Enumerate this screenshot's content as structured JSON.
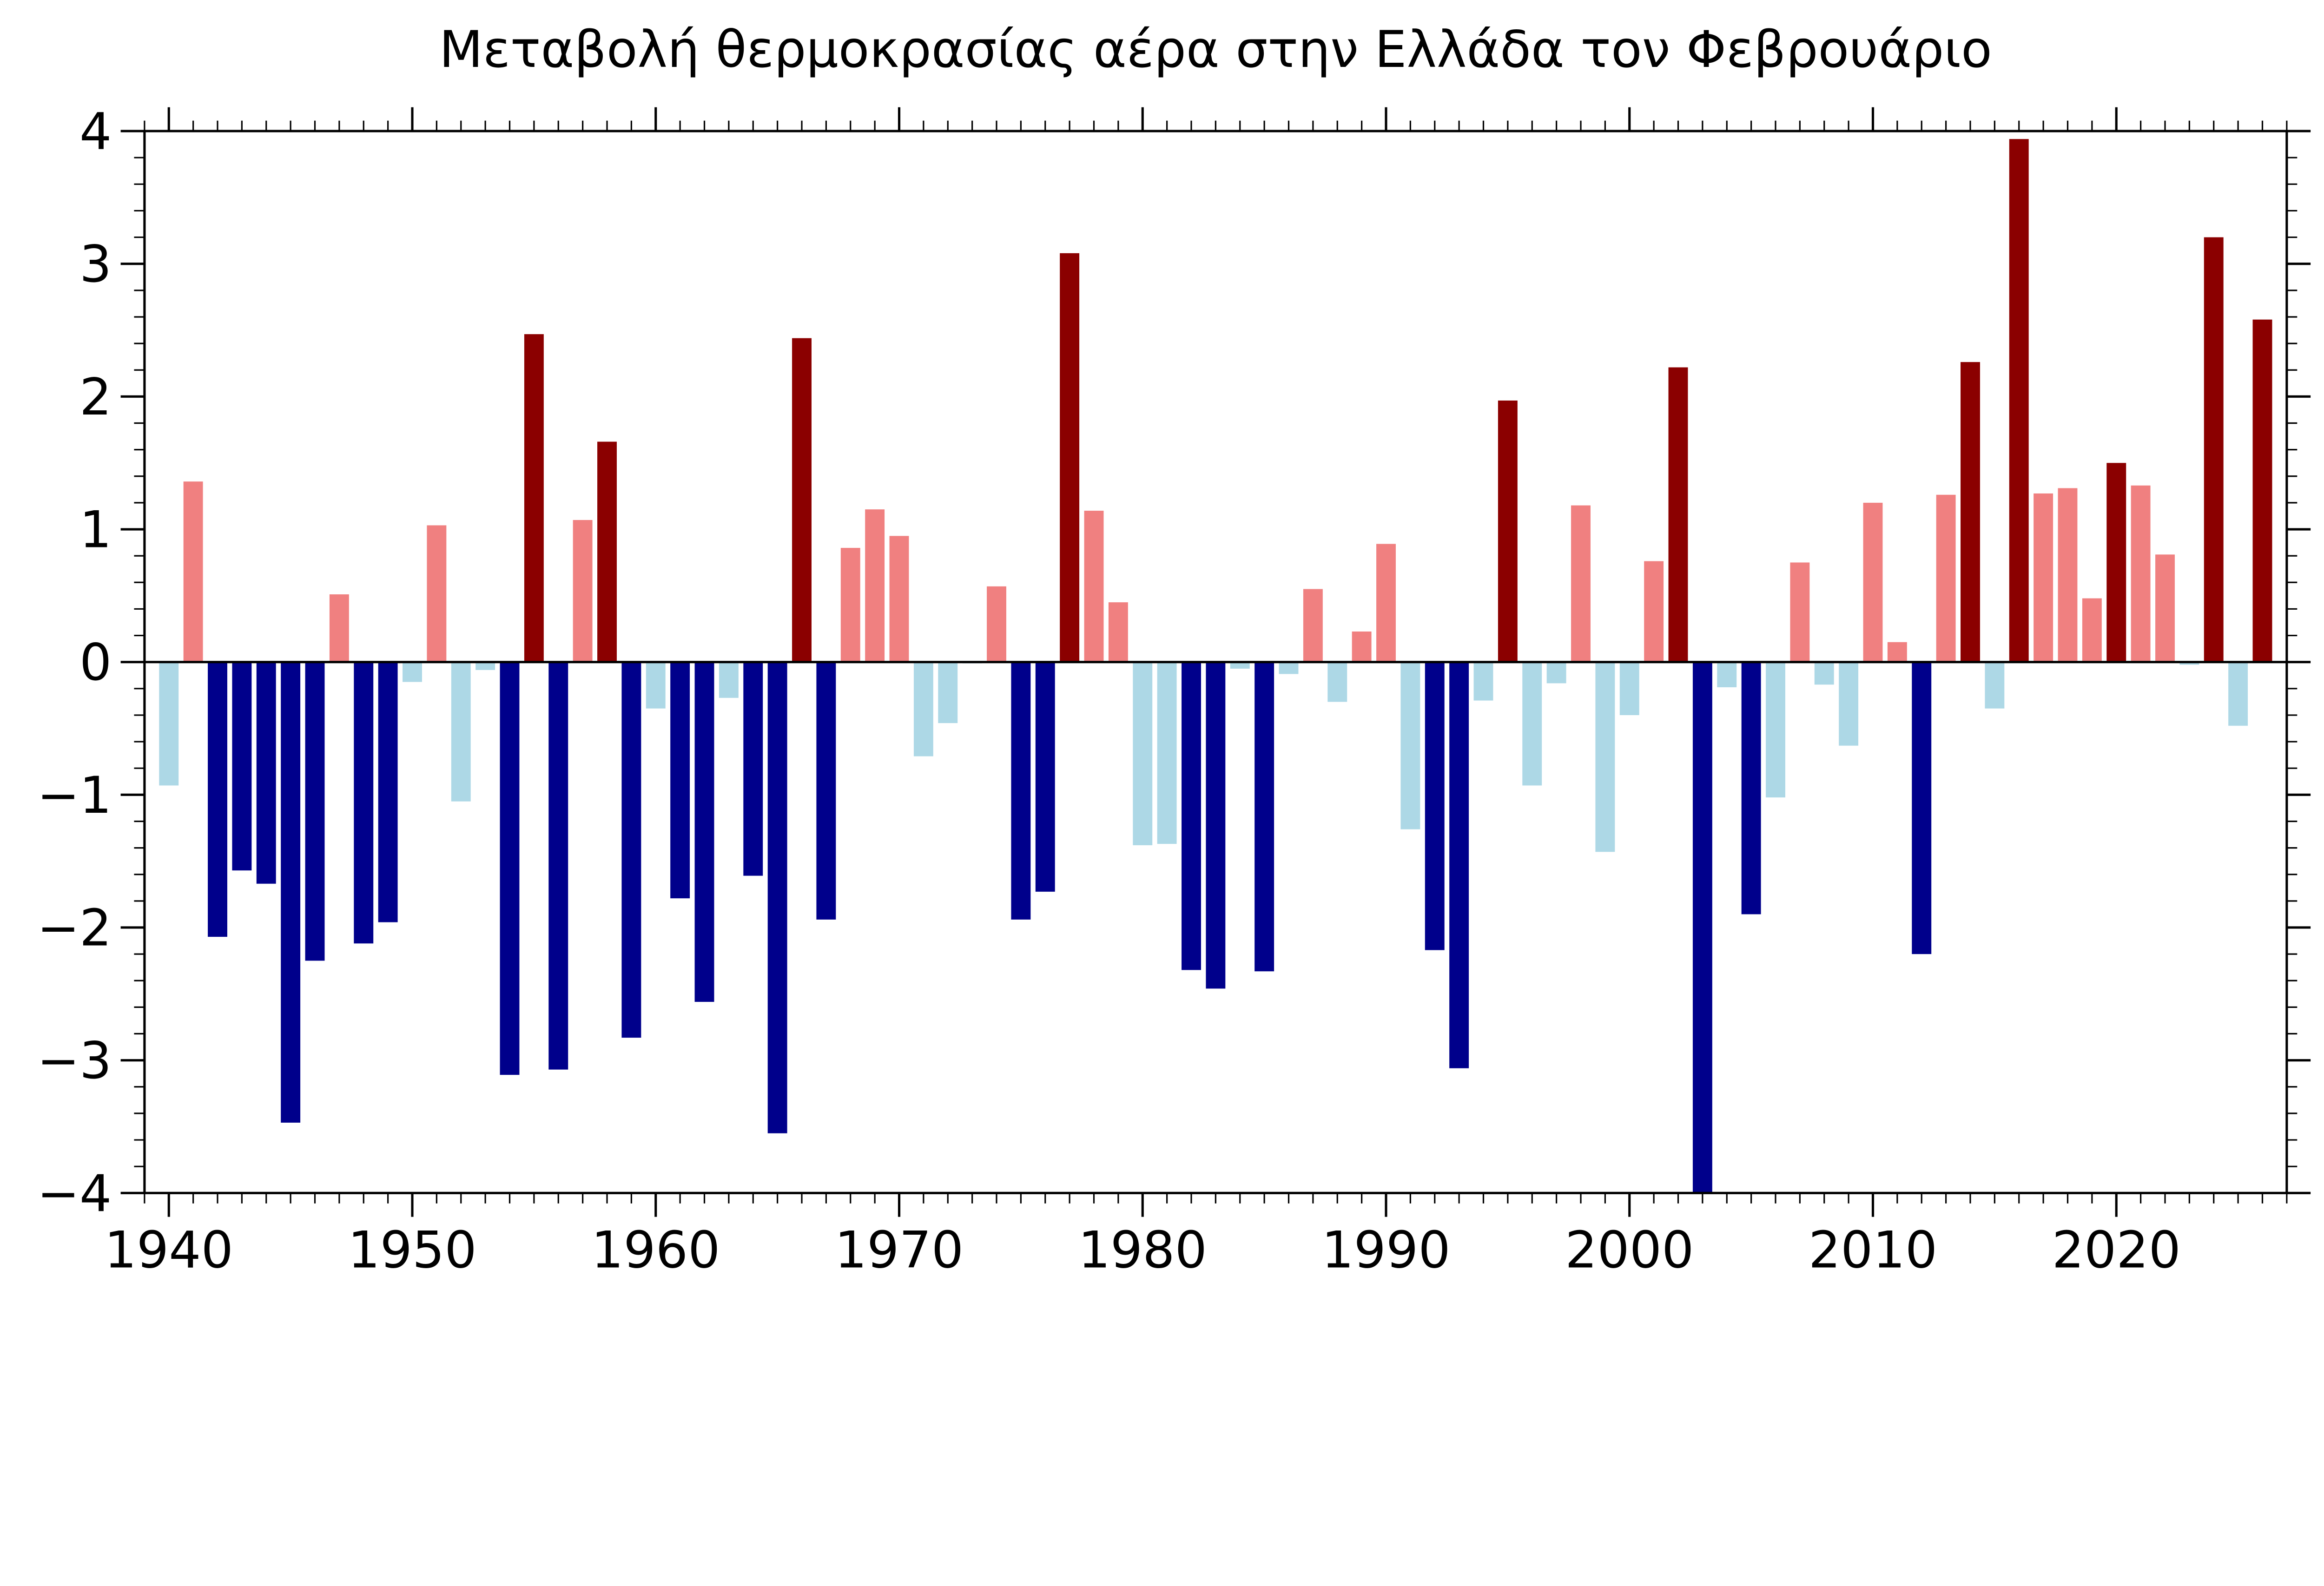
{
  "chart_data": {
    "type": "bar",
    "title": "Μεταβολή θερμοκρασίας αέρα στην Ελλάδα τον Φεβρουάριο",
    "xlabel": "",
    "ylabel": "",
    "xlim": [
      1939,
      2027
    ],
    "ylim": [
      -4,
      4
    ],
    "xticks": [
      1940,
      1950,
      1960,
      1970,
      1980,
      1990,
      2000,
      2010,
      2020
    ],
    "yticks": [
      -4,
      -3,
      -2,
      -1,
      0,
      1,
      2,
      3,
      4
    ],
    "ytick_labels": [
      "−4",
      "−3",
      "−2",
      "−1",
      "0",
      "1",
      "2",
      "3",
      "4"
    ],
    "grid": false,
    "colors": {
      "strong_warm": "#8B0000",
      "warm": "#F08080",
      "cool": "#ADD8E6",
      "strong_cool": "#00008B"
    },
    "strong_threshold": 1.45,
    "x": [
      1940,
      1941,
      1942,
      1943,
      1944,
      1945,
      1946,
      1947,
      1948,
      1949,
      1950,
      1951,
      1952,
      1953,
      1954,
      1955,
      1956,
      1957,
      1958,
      1959,
      1960,
      1961,
      1962,
      1963,
      1964,
      1965,
      1966,
      1967,
      1968,
      1969,
      1970,
      1971,
      1972,
      1973,
      1974,
      1975,
      1976,
      1977,
      1978,
      1979,
      1980,
      1981,
      1982,
      1983,
      1984,
      1985,
      1986,
      1987,
      1988,
      1989,
      1990,
      1991,
      1992,
      1993,
      1994,
      1995,
      1996,
      1997,
      1998,
      1999,
      2000,
      2001,
      2002,
      2003,
      2004,
      2005,
      2006,
      2007,
      2008,
      2009,
      2010,
      2011,
      2012,
      2013,
      2014,
      2015,
      2016,
      2017,
      2018,
      2019,
      2020,
      2021,
      2022,
      2023,
      2024,
      2025,
      2026
    ],
    "values": [
      -0.93,
      1.36,
      -2.07,
      -1.57,
      -1.67,
      -3.47,
      -2.25,
      0.51,
      -2.12,
      -1.96,
      -0.15,
      1.03,
      -1.05,
      -0.06,
      -3.11,
      2.47,
      -3.07,
      1.07,
      1.66,
      -2.83,
      -0.35,
      -1.78,
      -2.56,
      -0.27,
      -1.61,
      -3.55,
      2.44,
      -1.94,
      0.86,
      1.15,
      0.95,
      -0.71,
      -0.46,
      -0.01,
      0.57,
      -1.94,
      -1.73,
      3.08,
      1.14,
      0.45,
      -1.38,
      -1.37,
      -2.32,
      -2.46,
      -0.05,
      -2.33,
      -0.09,
      0.55,
      -0.3,
      0.23,
      0.89,
      -1.26,
      -2.17,
      -3.06,
      -0.29,
      1.97,
      -0.93,
      -0.16,
      1.18,
      -1.43,
      -0.4,
      0.76,
      2.22,
      -4.1,
      -0.19,
      -1.9,
      -1.02,
      0.75,
      -0.17,
      -0.63,
      1.2,
      0.15,
      -2.2,
      1.26,
      2.26,
      -0.35,
      3.94,
      1.27,
      1.31,
      0.48,
      1.5,
      1.33,
      0.81,
      -0.02,
      3.2,
      -0.48,
      2.58
    ]
  }
}
